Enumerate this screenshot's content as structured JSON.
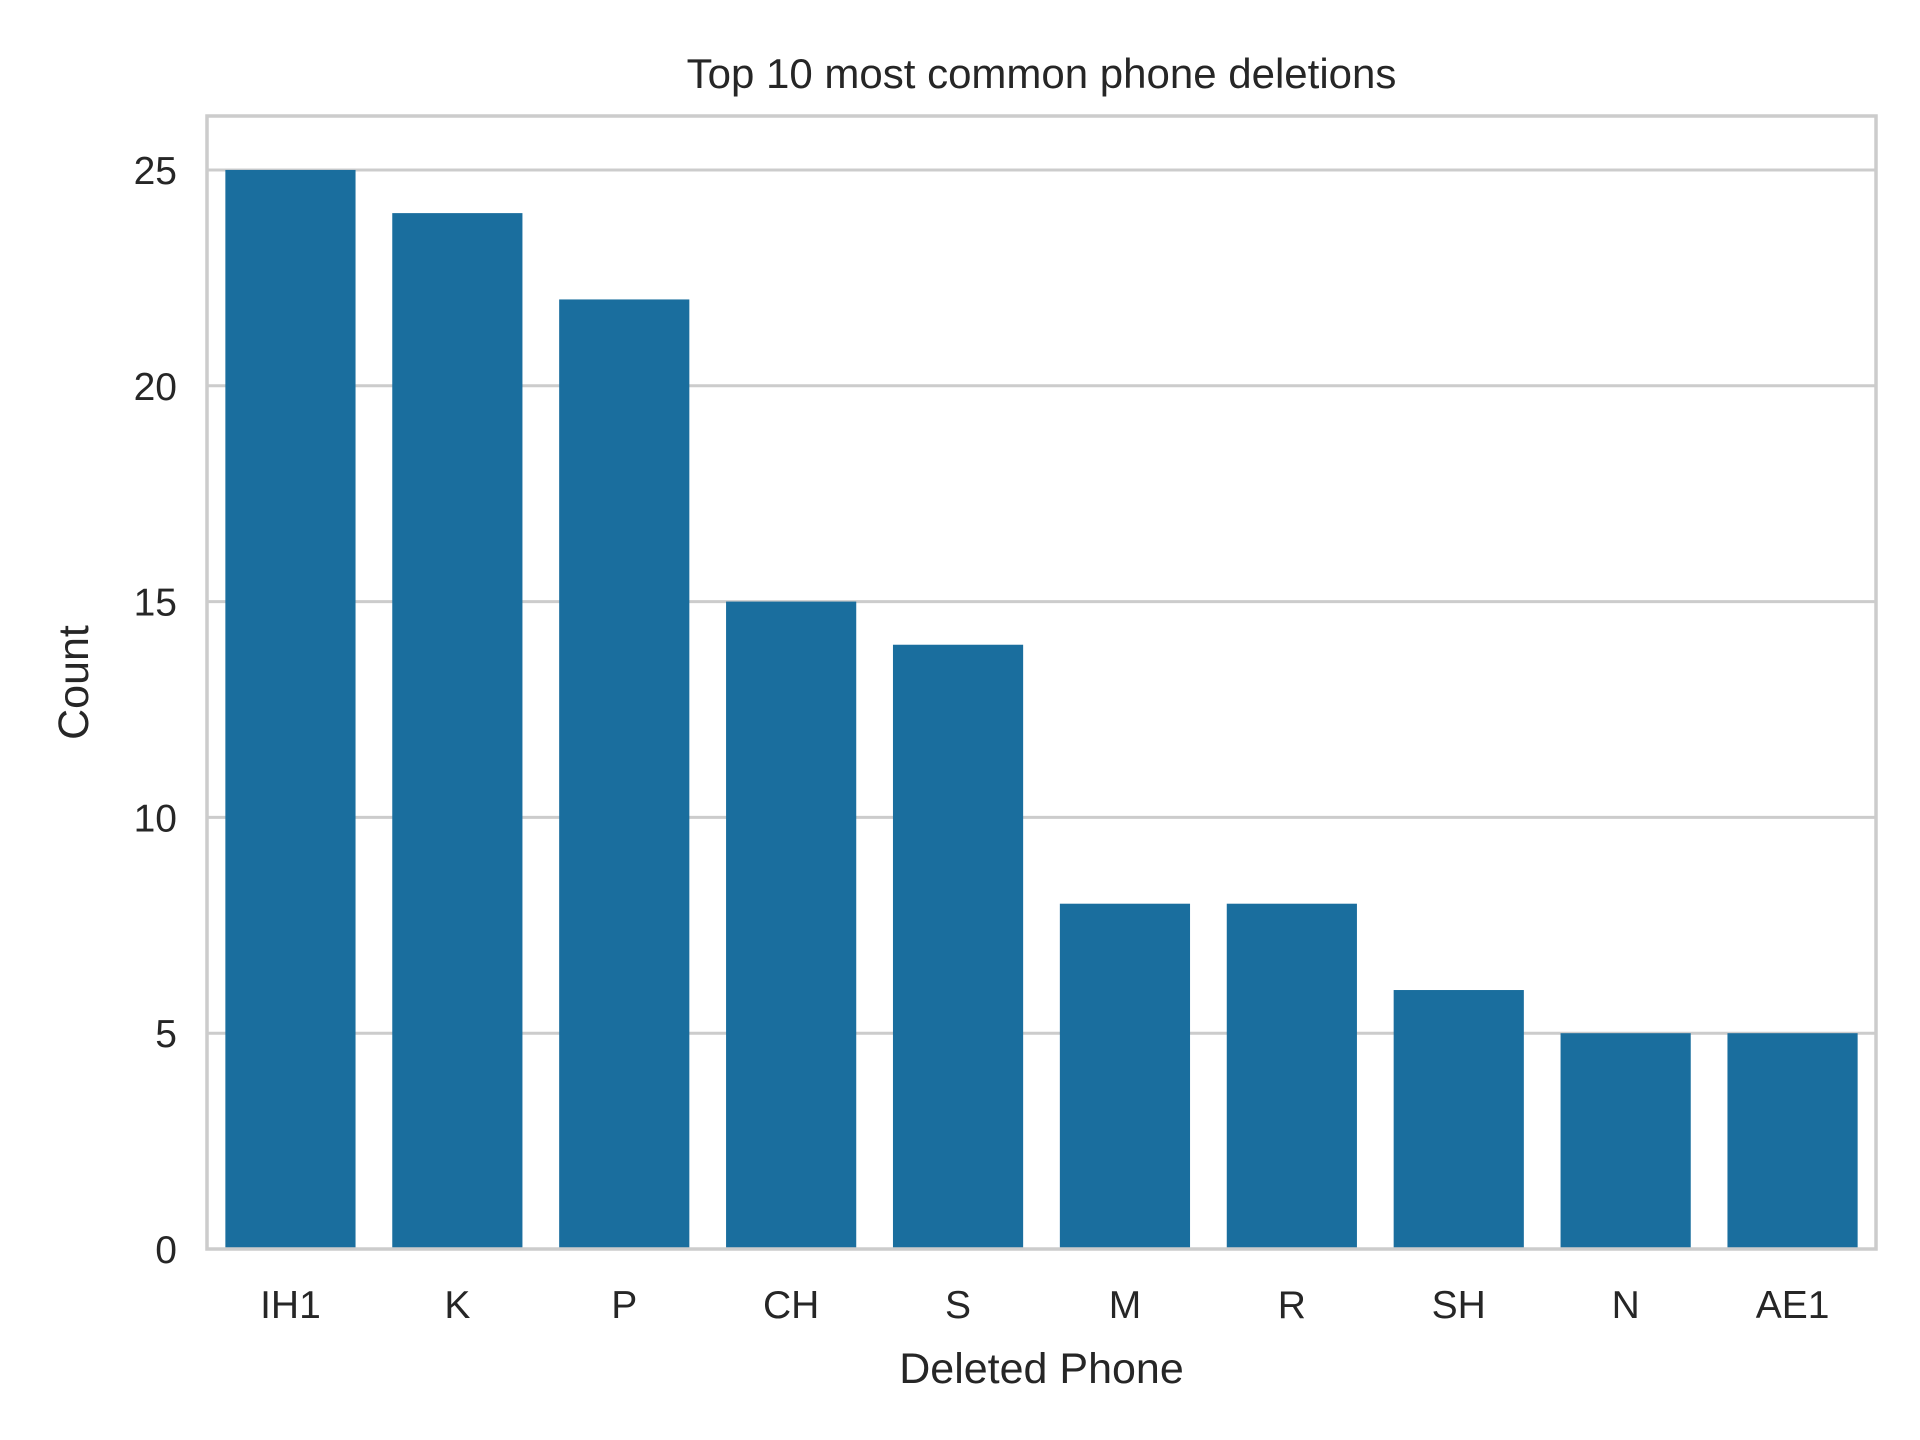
{
  "chart_data": {
    "type": "bar",
    "title": "Top 10 most common phone deletions",
    "xlabel": "Deleted Phone",
    "ylabel": "Count",
    "categories": [
      "IH1",
      "K",
      "P",
      "CH",
      "S",
      "M",
      "R",
      "SH",
      "N",
      "AE1"
    ],
    "values": [
      25,
      24,
      22,
      15,
      14,
      8,
      8,
      6,
      5,
      5
    ],
    "ylim": [
      0,
      26.25
    ],
    "yticks": [
      "0",
      "5",
      "10",
      "15",
      "20",
      "25"
    ],
    "grid": true,
    "legend": "none",
    "bar_color": "#1a6e9e"
  }
}
